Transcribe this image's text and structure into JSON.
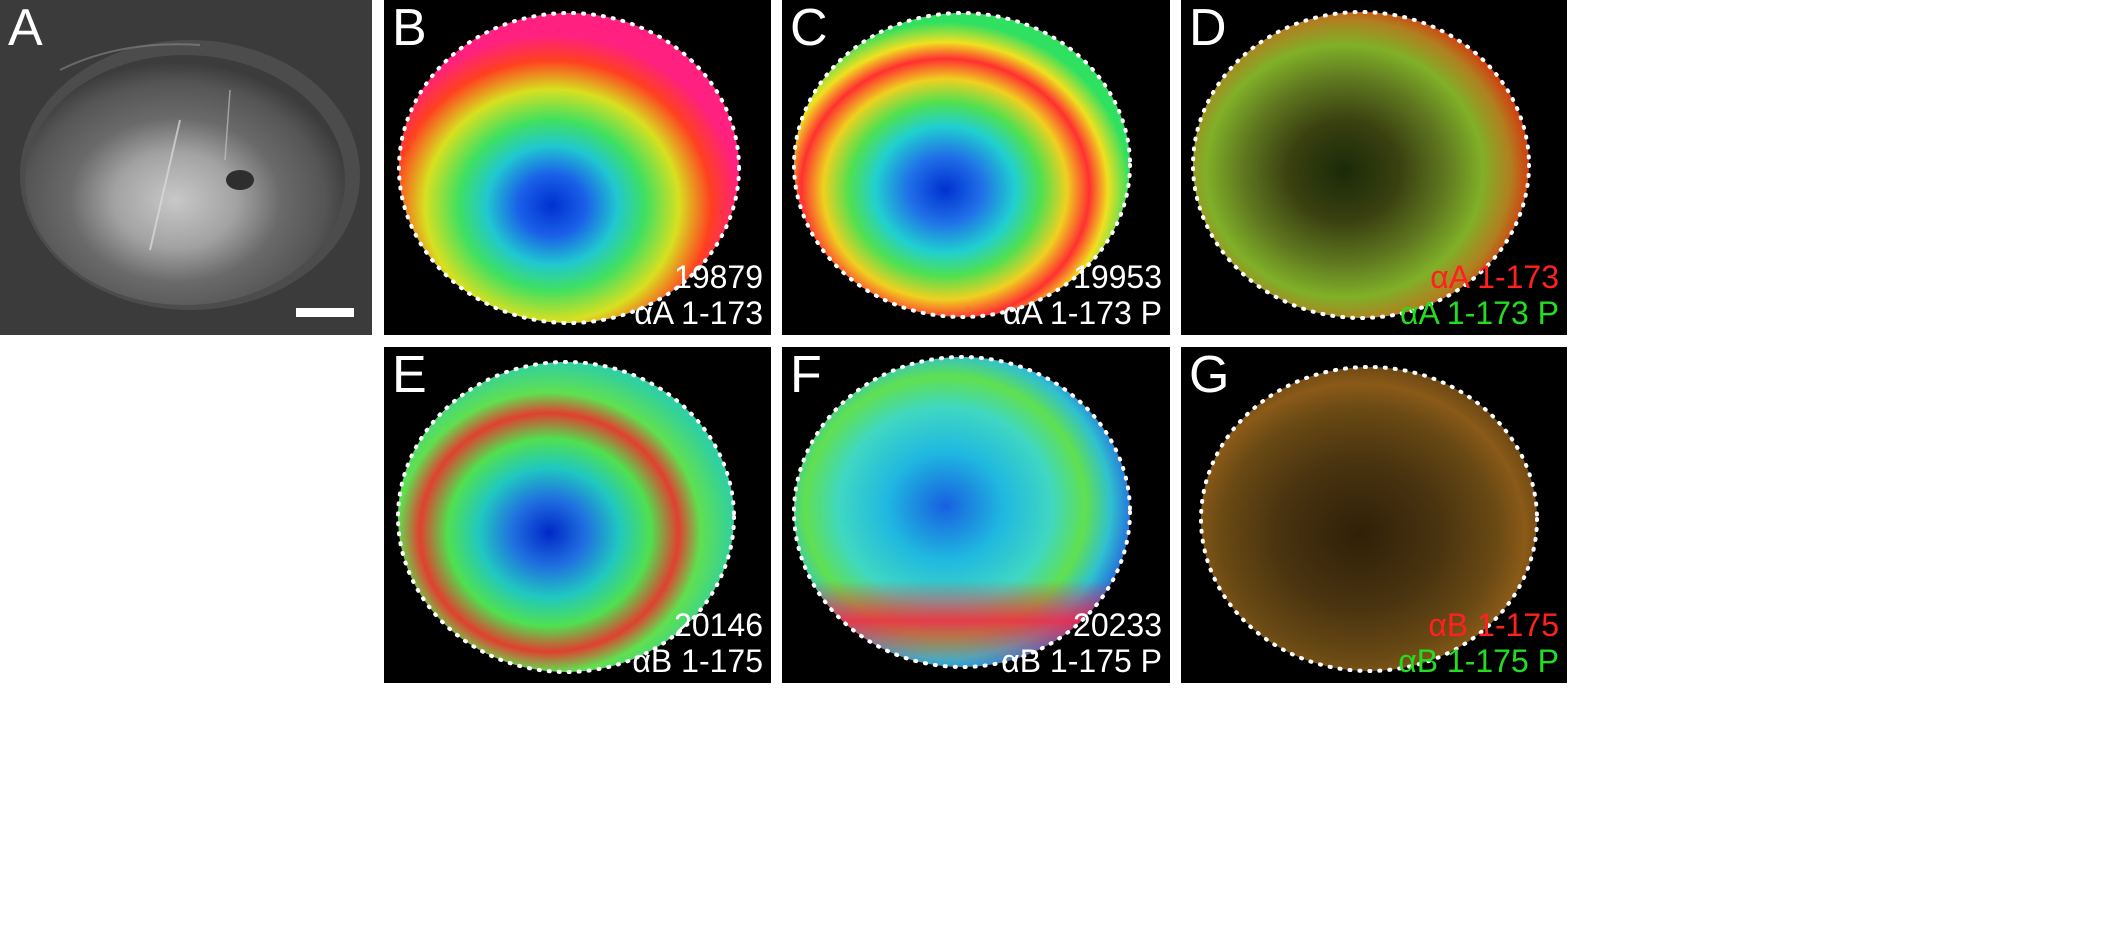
{
  "panels": {
    "A": {
      "letter": "A"
    },
    "B": {
      "letter": "B",
      "line1": "19879",
      "line2": "αA 1-173"
    },
    "C": {
      "letter": "C",
      "line1": "19953",
      "line2": "αA 1-173 P"
    },
    "D": {
      "letter": "D",
      "line1": "αA 1-173",
      "line2": "αA 1-173 P"
    },
    "E": {
      "letter": "E",
      "line1": "20146",
      "line2": "αB 1-175"
    },
    "F": {
      "letter": "F",
      "line1": "20233",
      "line2": "αB 1-175 P"
    },
    "G": {
      "letter": "G",
      "line1": "αB 1-175",
      "line2": "αB 1-175 P"
    }
  },
  "colors": {
    "overlay_red": "#ff2020",
    "overlay_green": "#22dd22",
    "caption_white": "#ffffff",
    "background": "#000000"
  }
}
